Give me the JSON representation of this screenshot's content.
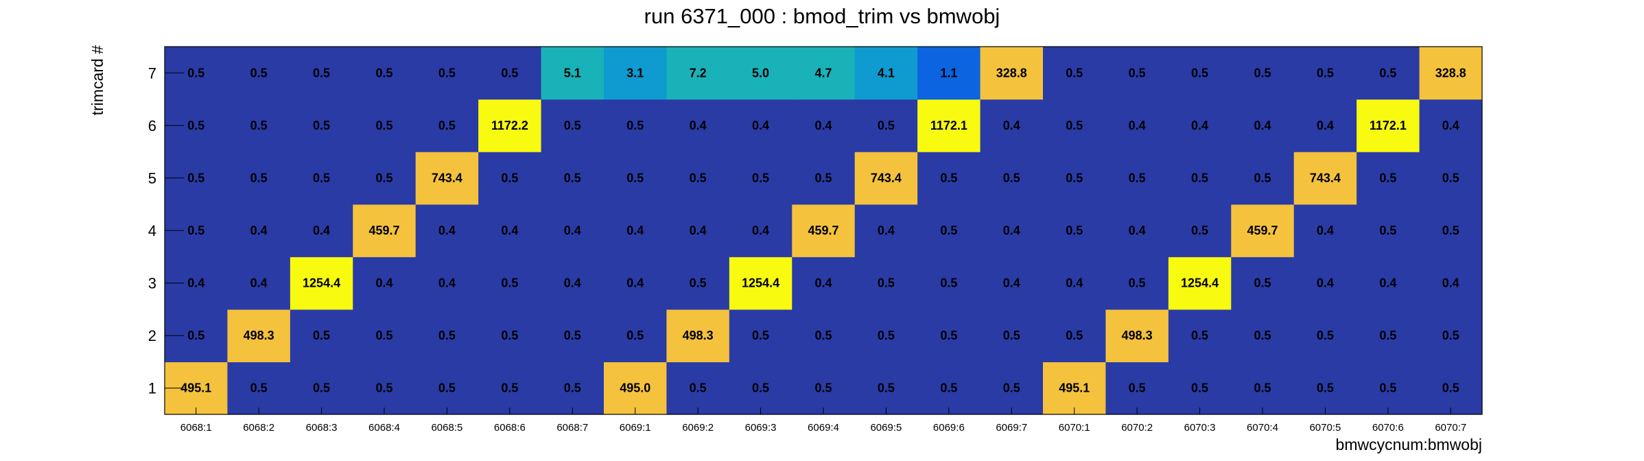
{
  "chart_data": {
    "type": "heatmap",
    "title": "run 6371_000 : bmod_trim vs bmwobj",
    "xlabel": "bmwcycnum:bmwobj",
    "ylabel": "trimcard #",
    "x_categories": [
      "6068:1",
      "6068:2",
      "6068:3",
      "6068:4",
      "6068:5",
      "6068:6",
      "6068:7",
      "6069:1",
      "6069:2",
      "6069:3",
      "6069:4",
      "6069:5",
      "6069:6",
      "6069:7",
      "6070:1",
      "6070:2",
      "6070:3",
      "6070:4",
      "6070:5",
      "6070:6",
      "6070:7"
    ],
    "y_categories": [
      "1",
      "2",
      "3",
      "4",
      "5",
      "6",
      "7"
    ],
    "values": [
      [
        "495.1",
        "0.5",
        "0.5",
        "0.5",
        "0.5",
        "0.5",
        "0.5",
        "495.0",
        "0.5",
        "0.5",
        "0.5",
        "0.5",
        "0.5",
        "0.5",
        "495.1",
        "0.5",
        "0.5",
        "0.5",
        "0.5",
        "0.5",
        "0.5"
      ],
      [
        "0.5",
        "498.3",
        "0.5",
        "0.5",
        "0.5",
        "0.5",
        "0.5",
        "0.5",
        "498.3",
        "0.5",
        "0.5",
        "0.5",
        "0.5",
        "0.5",
        "0.5",
        "498.3",
        "0.5",
        "0.5",
        "0.5",
        "0.5",
        "0.5"
      ],
      [
        "0.4",
        "0.4",
        "1254.4",
        "0.4",
        "0.4",
        "0.5",
        "0.4",
        "0.4",
        "0.5",
        "1254.4",
        "0.4",
        "0.5",
        "0.5",
        "0.4",
        "0.4",
        "0.5",
        "1254.4",
        "0.5",
        "0.4",
        "0.4",
        "0.4"
      ],
      [
        "0.5",
        "0.4",
        "0.4",
        "459.7",
        "0.4",
        "0.4",
        "0.4",
        "0.4",
        "0.4",
        "0.4",
        "459.7",
        "0.4",
        "0.5",
        "0.4",
        "0.5",
        "0.4",
        "0.5",
        "459.7",
        "0.4",
        "0.5",
        "0.5"
      ],
      [
        "0.5",
        "0.5",
        "0.5",
        "0.5",
        "743.4",
        "0.5",
        "0.5",
        "0.5",
        "0.5",
        "0.5",
        "0.5",
        "743.4",
        "0.5",
        "0.5",
        "0.5",
        "0.5",
        "0.5",
        "0.5",
        "743.4",
        "0.5",
        "0.5"
      ],
      [
        "0.5",
        "0.5",
        "0.5",
        "0.5",
        "0.5",
        "1172.2",
        "0.5",
        "0.5",
        "0.4",
        "0.4",
        "0.4",
        "0.5",
        "1172.1",
        "0.4",
        "0.5",
        "0.4",
        "0.4",
        "0.4",
        "0.4",
        "1172.1",
        "0.4"
      ],
      [
        "0.5",
        "0.5",
        "0.5",
        "0.5",
        "0.5",
        "0.5",
        "5.1",
        "3.1",
        "7.2",
        "5.0",
        "4.7",
        "4.1",
        "1.1",
        "328.8",
        "0.5",
        "0.5",
        "0.5",
        "0.5",
        "0.5",
        "0.5",
        "328.8"
      ]
    ],
    "colorscale": [
      "#2a3ba6",
      "#0c64e0",
      "#0f9ad0",
      "#19b2b8",
      "#f4c23c",
      "#f8fa10"
    ],
    "grid": false
  }
}
